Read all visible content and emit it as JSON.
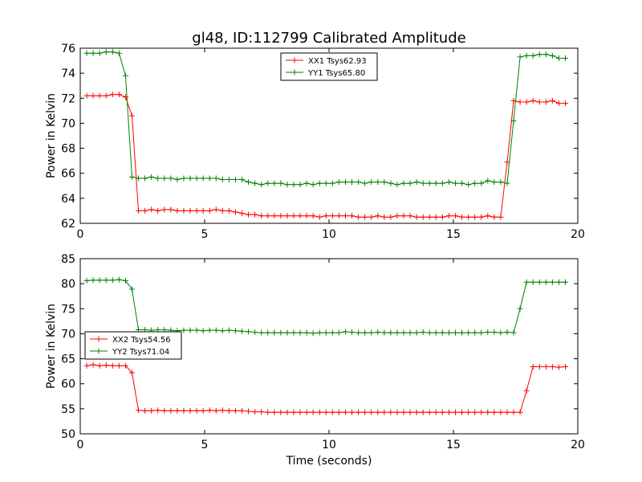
{
  "figure": {
    "title": "gl48, ID:112799 Calibrated Amplitude"
  },
  "chart_data": [
    {
      "type": "line",
      "title": "gl48, ID:112799 Calibrated Amplitude",
      "xlabel": "",
      "ylabel": "Power in Kelvin",
      "xlim": [
        0,
        20
      ],
      "ylim": [
        62,
        76
      ],
      "xticks": [
        0,
        5,
        10,
        15,
        20
      ],
      "yticks": [
        62,
        64,
        66,
        68,
        70,
        72,
        74,
        76
      ],
      "legend": {
        "placement": "upper-center"
      },
      "grid": false,
      "x": [
        0.26,
        0.52,
        0.78,
        1.04,
        1.3,
        1.56,
        1.82,
        2.08,
        2.34,
        2.6,
        2.86,
        3.12,
        3.38,
        3.64,
        3.9,
        4.16,
        4.42,
        4.68,
        4.94,
        5.2,
        5.46,
        5.72,
        5.98,
        6.24,
        6.5,
        6.76,
        7.02,
        7.28,
        7.54,
        7.8,
        8.06,
        8.32,
        8.58,
        8.84,
        9.1,
        9.36,
        9.62,
        9.88,
        10.14,
        10.4,
        10.66,
        10.92,
        11.18,
        11.44,
        11.7,
        11.96,
        12.22,
        12.48,
        12.74,
        13.0,
        13.26,
        13.52,
        13.78,
        14.04,
        14.3,
        14.56,
        14.82,
        15.08,
        15.34,
        15.6,
        15.86,
        16.12,
        16.38,
        16.64,
        16.9,
        17.16,
        17.42,
        17.68,
        17.94,
        18.2,
        18.46,
        18.72,
        18.98,
        19.24,
        19.5
      ],
      "series": [
        {
          "name": "XX1 Tsys62.93",
          "color": "#ff0000",
          "values": [
            72.2,
            72.2,
            72.2,
            72.2,
            72.3,
            72.3,
            72.1,
            70.6,
            63.0,
            63.0,
            63.1,
            63.0,
            63.1,
            63.1,
            63.0,
            63.0,
            63.0,
            63.0,
            63.0,
            63.0,
            63.1,
            63.0,
            63.0,
            62.9,
            62.8,
            62.7,
            62.7,
            62.6,
            62.6,
            62.6,
            62.6,
            62.6,
            62.6,
            62.6,
            62.6,
            62.6,
            62.5,
            62.6,
            62.6,
            62.6,
            62.6,
            62.6,
            62.5,
            62.5,
            62.5,
            62.6,
            62.5,
            62.5,
            62.6,
            62.6,
            62.6,
            62.5,
            62.5,
            62.5,
            62.5,
            62.5,
            62.6,
            62.6,
            62.5,
            62.5,
            62.5,
            62.5,
            62.6,
            62.5,
            62.5,
            66.9,
            71.8,
            71.7,
            71.7,
            71.8,
            71.7,
            71.7,
            71.8,
            71.6,
            71.6
          ]
        },
        {
          "name": "YY1 Tsys65.80",
          "color": "#008000",
          "values": [
            75.6,
            75.6,
            75.6,
            75.7,
            75.7,
            75.6,
            73.8,
            65.7,
            65.6,
            65.6,
            65.7,
            65.6,
            65.6,
            65.6,
            65.5,
            65.6,
            65.6,
            65.6,
            65.6,
            65.6,
            65.6,
            65.5,
            65.5,
            65.5,
            65.5,
            65.3,
            65.2,
            65.1,
            65.2,
            65.2,
            65.2,
            65.1,
            65.1,
            65.1,
            65.2,
            65.1,
            65.2,
            65.2,
            65.2,
            65.3,
            65.3,
            65.3,
            65.3,
            65.2,
            65.3,
            65.3,
            65.3,
            65.2,
            65.1,
            65.2,
            65.2,
            65.3,
            65.2,
            65.2,
            65.2,
            65.2,
            65.3,
            65.2,
            65.2,
            65.1,
            65.2,
            65.2,
            65.4,
            65.3,
            65.3,
            65.2,
            70.2,
            75.3,
            75.4,
            75.4,
            75.5,
            75.5,
            75.4,
            75.2,
            75.2
          ]
        }
      ]
    },
    {
      "type": "line",
      "title": "",
      "xlabel": "Time (seconds)",
      "ylabel": "Power in Kelvin",
      "xlim": [
        0,
        20
      ],
      "ylim": [
        50,
        85
      ],
      "xticks": [
        0,
        5,
        10,
        15,
        20
      ],
      "yticks": [
        50,
        55,
        60,
        65,
        70,
        75,
        80,
        85
      ],
      "legend": {
        "placement": "center-left"
      },
      "grid": false,
      "x": [
        0.26,
        0.52,
        0.78,
        1.04,
        1.3,
        1.56,
        1.82,
        2.08,
        2.34,
        2.6,
        2.86,
        3.12,
        3.38,
        3.64,
        3.9,
        4.16,
        4.42,
        4.68,
        4.94,
        5.2,
        5.46,
        5.72,
        5.98,
        6.24,
        6.5,
        6.76,
        7.02,
        7.28,
        7.54,
        7.8,
        8.06,
        8.32,
        8.58,
        8.84,
        9.1,
        9.36,
        9.62,
        9.88,
        10.14,
        10.4,
        10.66,
        10.92,
        11.18,
        11.44,
        11.7,
        11.96,
        12.22,
        12.48,
        12.74,
        13.0,
        13.26,
        13.52,
        13.78,
        14.04,
        14.3,
        14.56,
        14.82,
        15.08,
        15.34,
        15.6,
        15.86,
        16.12,
        16.38,
        16.64,
        16.9,
        17.16,
        17.42,
        17.68,
        17.94,
        18.2,
        18.46,
        18.72,
        18.98,
        19.24,
        19.5
      ],
      "series": [
        {
          "name": "XX2 Tsys54.56",
          "color": "#ff0000",
          "values": [
            63.6,
            63.8,
            63.6,
            63.7,
            63.6,
            63.6,
            63.6,
            62.2,
            54.7,
            54.6,
            54.6,
            54.7,
            54.6,
            54.6,
            54.6,
            54.6,
            54.6,
            54.6,
            54.6,
            54.7,
            54.6,
            54.7,
            54.6,
            54.6,
            54.6,
            54.5,
            54.4,
            54.4,
            54.3,
            54.3,
            54.3,
            54.3,
            54.3,
            54.3,
            54.3,
            54.3,
            54.3,
            54.3,
            54.3,
            54.3,
            54.3,
            54.3,
            54.3,
            54.3,
            54.3,
            54.3,
            54.3,
            54.3,
            54.3,
            54.3,
            54.3,
            54.3,
            54.3,
            54.3,
            54.3,
            54.3,
            54.3,
            54.3,
            54.3,
            54.3,
            54.3,
            54.3,
            54.3,
            54.3,
            54.3,
            54.3,
            54.3,
            54.3,
            58.6,
            63.4,
            63.4,
            63.4,
            63.4,
            63.3,
            63.4
          ]
        },
        {
          "name": "YY2 Tsys71.04",
          "color": "#008000",
          "values": [
            80.6,
            80.7,
            80.7,
            80.7,
            80.7,
            80.8,
            80.6,
            78.9,
            70.8,
            70.8,
            70.7,
            70.8,
            70.8,
            70.7,
            70.6,
            70.7,
            70.7,
            70.7,
            70.6,
            70.7,
            70.7,
            70.6,
            70.7,
            70.6,
            70.5,
            70.4,
            70.3,
            70.2,
            70.2,
            70.2,
            70.2,
            70.2,
            70.2,
            70.2,
            70.2,
            70.1,
            70.2,
            70.2,
            70.2,
            70.2,
            70.4,
            70.3,
            70.2,
            70.2,
            70.2,
            70.3,
            70.2,
            70.2,
            70.2,
            70.2,
            70.2,
            70.2,
            70.3,
            70.2,
            70.2,
            70.2,
            70.2,
            70.2,
            70.2,
            70.2,
            70.2,
            70.2,
            70.3,
            70.3,
            70.2,
            70.3,
            70.2,
            75.0,
            80.3,
            80.3,
            80.3,
            80.3,
            80.3,
            80.3,
            80.3
          ]
        }
      ]
    }
  ]
}
